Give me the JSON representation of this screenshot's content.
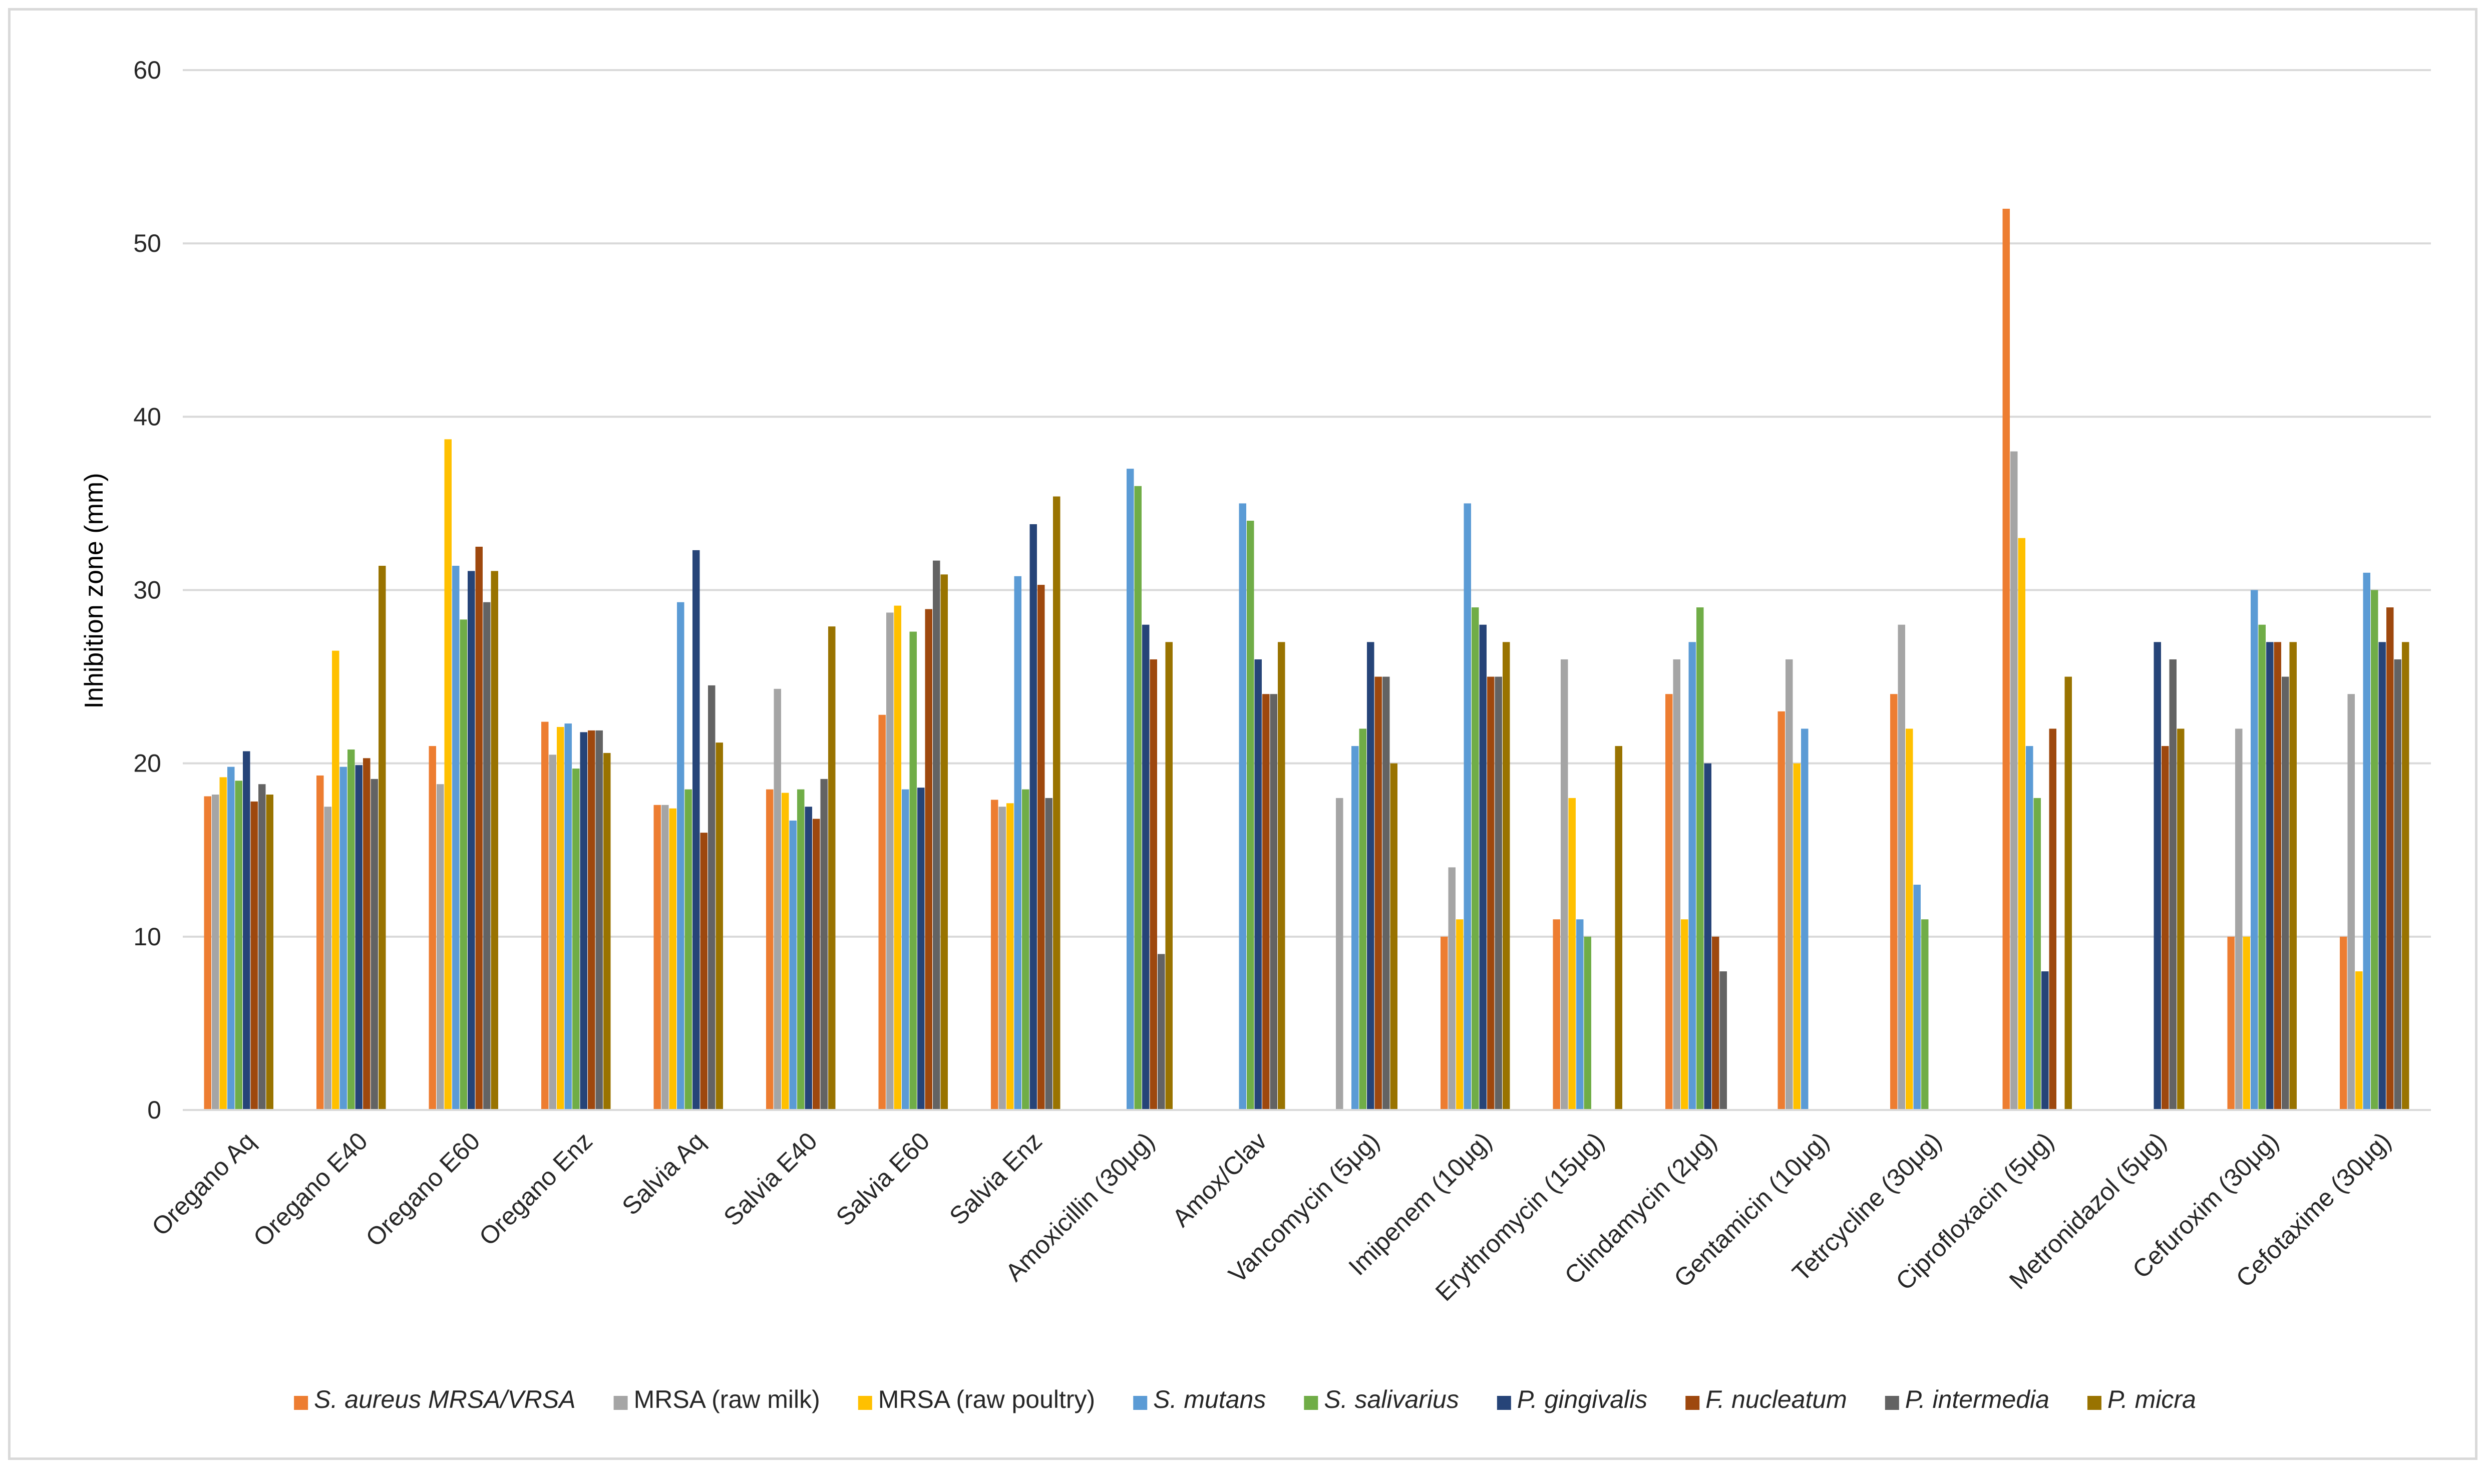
{
  "chart_data": {
    "type": "bar",
    "title": "",
    "xlabel": "",
    "ylabel": "Inhibition zone (mm)",
    "ylim": [
      0,
      60
    ],
    "yticks": [
      0,
      10,
      20,
      30,
      40,
      50,
      60
    ],
    "grid": true,
    "legend_position": "bottom",
    "categories": [
      "Oregano Aq",
      "Oregano E40",
      "Oregano E60",
      "Oregano Enz",
      "Salvia Aq",
      "Salvia E40",
      "Salvia E60",
      "Salvia Enz",
      "Amoxicillin (30μg)",
      "Amox/Clav",
      "Vancomycin (5μg)",
      "Imipenem (10μg)",
      "Erythromycin (15μg)",
      "Clindamycin (2μg)",
      "Gentamicin (10μg)",
      "Tetrcycline (30μg)",
      "Ciprofloxacin (5μg)",
      "Metronidazol (5μg)",
      "Cefuroxim (30μg)",
      "Cefotaxime (30μg)"
    ],
    "series": [
      {
        "name": "S. aureus MRSA/VRSA",
        "italic": true,
        "color": "#ED7D31",
        "values": [
          18.1,
          19.3,
          21.0,
          22.4,
          17.6,
          18.5,
          22.8,
          17.9,
          null,
          null,
          null,
          10,
          11,
          24,
          23,
          24,
          52,
          null,
          10,
          10
        ]
      },
      {
        "name": "MRSA (raw milk)",
        "italic": false,
        "color": "#A5A5A5",
        "values": [
          18.2,
          17.5,
          18.8,
          20.5,
          17.6,
          24.3,
          28.7,
          17.5,
          null,
          null,
          18,
          14,
          26,
          26,
          26,
          28,
          38,
          null,
          22,
          24
        ]
      },
      {
        "name": "MRSA (raw poultry)",
        "italic": false,
        "color": "#FFC000",
        "values": [
          19.2,
          26.5,
          38.7,
          22.1,
          17.4,
          18.3,
          29.1,
          17.7,
          null,
          null,
          null,
          11,
          18,
          11,
          20,
          22,
          33,
          null,
          10,
          8
        ]
      },
      {
        "name": "S. mutans",
        "italic": true,
        "color": "#5B9BD5",
        "values": [
          19.8,
          19.8,
          31.4,
          22.3,
          29.3,
          16.7,
          18.5,
          30.8,
          37,
          35,
          21,
          35,
          11,
          27,
          22,
          13,
          21,
          null,
          30,
          31
        ]
      },
      {
        "name": "S. salivarius",
        "italic": true,
        "color": "#70AD47",
        "values": [
          19.0,
          20.8,
          28.3,
          19.7,
          18.5,
          18.5,
          27.6,
          18.5,
          36,
          34,
          22,
          29,
          10,
          29,
          null,
          11,
          18,
          null,
          28,
          30
        ]
      },
      {
        "name": "P. gingivalis",
        "italic": true,
        "color": "#264478",
        "values": [
          20.7,
          19.9,
          31.1,
          21.8,
          32.3,
          17.5,
          18.6,
          33.8,
          28,
          26,
          27,
          28,
          null,
          20,
          null,
          null,
          8,
          27,
          27,
          27
        ]
      },
      {
        "name": "F. nucleatum",
        "italic": true,
        "color": "#9E480E",
        "values": [
          17.8,
          20.3,
          32.5,
          21.9,
          16.0,
          16.8,
          28.9,
          30.3,
          26,
          24,
          25,
          25,
          null,
          10,
          null,
          null,
          22,
          21,
          27,
          29
        ]
      },
      {
        "name": "P. intermedia",
        "italic": true,
        "color": "#636363",
        "values": [
          18.8,
          19.1,
          29.3,
          21.9,
          24.5,
          19.1,
          31.7,
          18.0,
          9,
          24,
          25,
          25,
          null,
          8,
          null,
          null,
          null,
          26,
          25,
          26
        ]
      },
      {
        "name": "P. micra",
        "italic": true,
        "color": "#997300",
        "values": [
          18.2,
          31.4,
          31.1,
          20.6,
          21.2,
          27.9,
          30.9,
          35.4,
          27,
          27,
          20,
          27,
          21,
          null,
          null,
          null,
          25,
          22,
          27,
          27
        ]
      }
    ]
  }
}
